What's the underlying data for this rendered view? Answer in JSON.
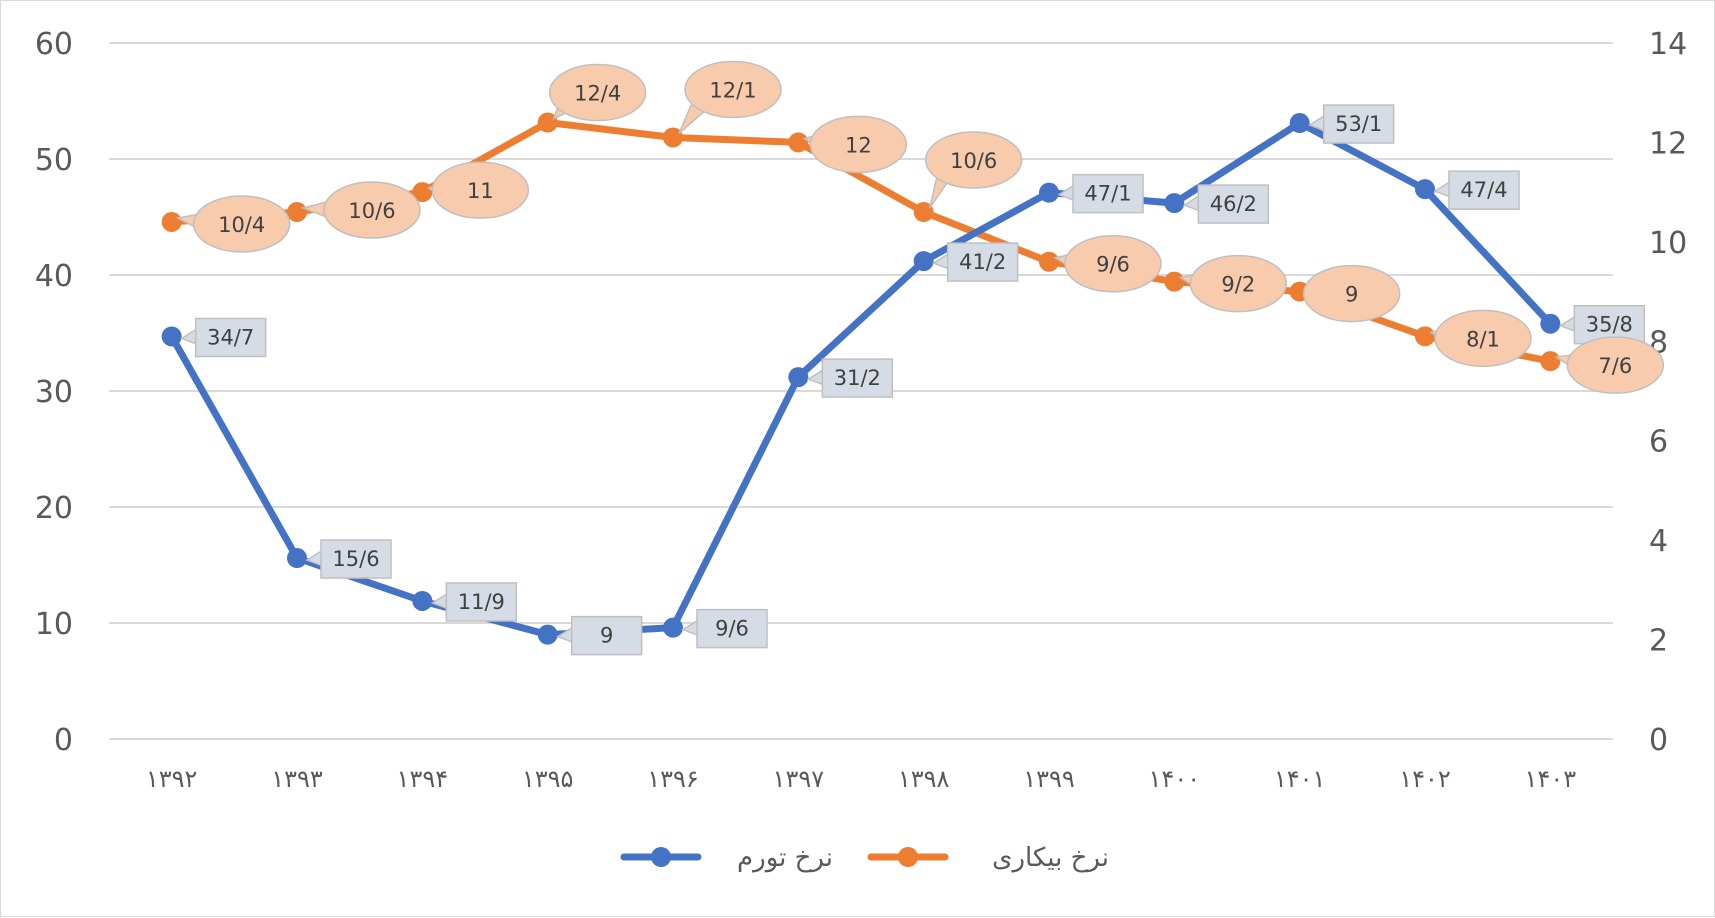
{
  "chart_data": {
    "type": "line",
    "categories": [
      "۱۳۹۲",
      "۱۳۹۳",
      "۱۳۹۴",
      "۱۳۹۵",
      "۱۳۹۶",
      "۱۳۹۷",
      "۱۳۹۸",
      "۱۳۹۹",
      "۱۴۰۰",
      "۱۴۰۱",
      "۱۴۰۲",
      "۱۴۰۳"
    ],
    "left_axis": {
      "ylim": [
        0,
        60
      ],
      "ticks": [
        "0",
        "10",
        "20",
        "30",
        "40",
        "50",
        "60"
      ]
    },
    "right_axis": {
      "ylim": [
        0,
        14
      ],
      "ticks": [
        "0",
        "2",
        "4",
        "6",
        "8",
        "10",
        "12",
        "14"
      ]
    },
    "grid": true,
    "legend_placement": "bottom",
    "series": [
      {
        "name": "نرخ تورم",
        "axis": "left",
        "color": "#4472C4",
        "label_fill": "#D6DCE5",
        "values": [
          34.7,
          15.6,
          11.9,
          9,
          9.6,
          31.2,
          41.2,
          47.1,
          46.2,
          53.1,
          47.4,
          35.8
        ],
        "labels": [
          "34/7",
          "15/6",
          "11/9",
          "9",
          "9/6",
          "31/2",
          "41/2",
          "47/1",
          "46/2",
          "53/1",
          "47/4",
          "35/8"
        ]
      },
      {
        "name": "نرخ بیکاری",
        "axis": "right",
        "color": "#ED7D31",
        "label_fill": "#F8CBAD",
        "values": [
          10.4,
          10.6,
          11,
          12.4,
          12.1,
          12,
          10.6,
          9.6,
          9.2,
          9,
          8.1,
          7.6
        ],
        "labels": [
          "10/4",
          "10/6",
          "11",
          "12/4",
          "12/1",
          "12",
          "10/6",
          "9/6",
          "9/2",
          "9",
          "8/1",
          "7/6"
        ]
      }
    ]
  }
}
